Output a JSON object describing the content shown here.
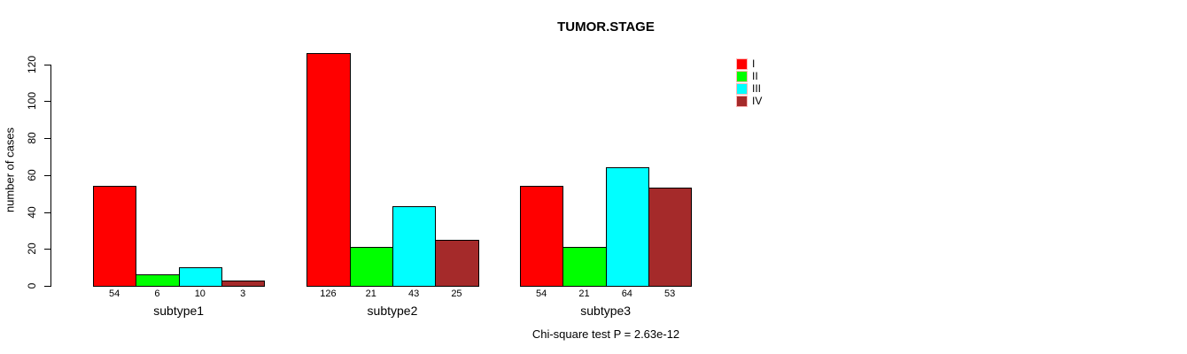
{
  "title": "TUMOR.STAGE",
  "chart_data": {
    "type": "bar",
    "title": "TUMOR.STAGE",
    "xlabel": "",
    "ylabel": "number of cases",
    "categories": [
      "subtype1",
      "subtype2",
      "subtype3"
    ],
    "series": [
      {
        "name": "I",
        "color": "#FF0000",
        "values": [
          54,
          126,
          54
        ]
      },
      {
        "name": "II",
        "color": "#00FF00",
        "values": [
          6,
          21,
          21
        ]
      },
      {
        "name": "III",
        "color": "#00FFFF",
        "values": [
          10,
          43,
          64
        ]
      },
      {
        "name": "IV",
        "color": "#A52A2A",
        "values": [
          3,
          25,
          53
        ]
      }
    ],
    "bar_value_labels": [
      [
        54,
        6,
        10,
        3
      ],
      [
        126,
        21,
        43,
        25
      ],
      [
        54,
        21,
        64,
        53
      ]
    ],
    "yticks": [
      0,
      20,
      40,
      60,
      80,
      100,
      120
    ],
    "ylim": [
      0,
      126
    ],
    "grid": false,
    "legend_position": "top-right",
    "legend_entries": [
      "I",
      "II",
      "III",
      "IV"
    ],
    "annotation": "Chi-square test P = 2.63e-12",
    "colors": {
      "bar_border": "#000000",
      "axis": "#000000",
      "text": "#000000",
      "legend_swatch_border": "#FFB6B6",
      "background": "#FFFFFF"
    }
  }
}
